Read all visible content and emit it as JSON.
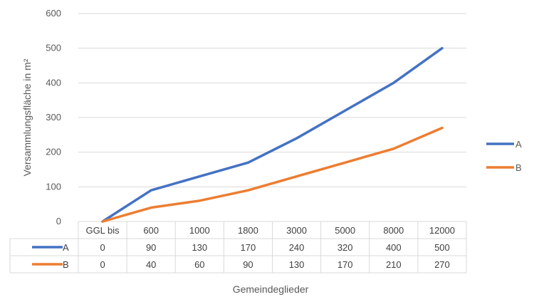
{
  "chart_data": {
    "type": "line",
    "categories": [
      "GGL bis",
      "600",
      "1000",
      "1800",
      "3000",
      "5000",
      "8000",
      "12000"
    ],
    "series": [
      {
        "name": "A",
        "values": [
          0,
          90,
          130,
          170,
          240,
          320,
          400,
          500
        ],
        "color": "#4472C4"
      },
      {
        "name": "B",
        "values": [
          0,
          40,
          60,
          90,
          130,
          170,
          210,
          270
        ],
        "color": "#ED7D31"
      }
    ],
    "y_ticks": [
      "0",
      "100",
      "200",
      "300",
      "400",
      "500",
      "600"
    ],
    "ylim": [
      0,
      600
    ],
    "ylabel": "Versammlungsfläche in m²",
    "xlabel": "Gemeindeglieder",
    "grid": true,
    "legend": "right",
    "data_table": true,
    "colors": {
      "grid": "#d9d9d9",
      "text": "#595959"
    }
  }
}
